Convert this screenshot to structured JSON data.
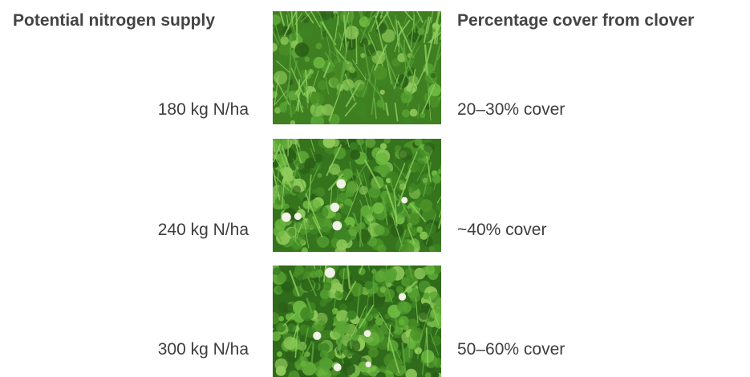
{
  "headers": {
    "left": "Potential nitrogen supply",
    "right": "Percentage cover from clover"
  },
  "rows": [
    {
      "nitrogen": "180 kg N/ha",
      "cover": "20–30% cover",
      "photo_icon": "grass-clover-sparse-photo",
      "flower_count": 0
    },
    {
      "nitrogen": "240 kg N/ha",
      "cover": "~40% cover",
      "photo_icon": "grass-clover-medium-photo",
      "flower_count": 6
    },
    {
      "nitrogen": "300 kg N/ha",
      "cover": "50–60% cover",
      "photo_icon": "grass-clover-dense-photo",
      "flower_count": 6
    }
  ],
  "colors": {
    "grass_dark": "#2f6b1f",
    "grass_mid": "#4e9a2c",
    "clover": "#5fae38",
    "flower": "#f1f1e6"
  }
}
